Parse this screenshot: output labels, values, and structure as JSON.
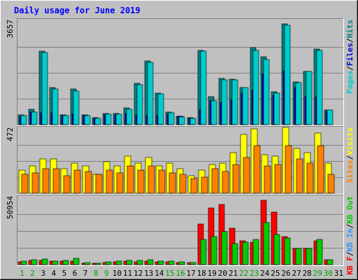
{
  "chart_data": {
    "type": "bar",
    "title": "Daily usage for June 2019",
    "categories": [
      "1",
      "2",
      "3",
      "4",
      "5",
      "6",
      "7",
      "8",
      "9",
      "10",
      "11",
      "12",
      "13",
      "14",
      "15",
      "16",
      "17",
      "18",
      "19",
      "20",
      "21",
      "22",
      "23",
      "24",
      "25",
      "26",
      "27",
      "28",
      "29",
      "30",
      "31"
    ],
    "weekend_days": [
      "1",
      "2",
      "8",
      "9",
      "15",
      "16",
      "22",
      "23",
      "29",
      "30"
    ],
    "grid": true,
    "panels": [
      {
        "name": "hits-files-pages",
        "ymax_label": "3657",
        "ylim": [
          0,
          3657
        ],
        "right_labels": [
          {
            "text": "Pages",
            "color": "#00cccc"
          },
          {
            "text": "/",
            "color": "#000000"
          },
          {
            "text": "Files",
            "color": "#0000cc"
          },
          {
            "text": "/",
            "color": "#000000"
          },
          {
            "text": "Hits",
            "color": "#008080"
          }
        ],
        "series": [
          {
            "name": "Hits",
            "color": "#008080",
            "values": [
              350,
              550,
              2600,
              1300,
              350,
              1250,
              350,
              250,
              400,
              400,
              600,
              1450,
              2250,
              1100,
              450,
              300,
              250,
              2630,
              1000,
              1620,
              1600,
              1300,
              2720,
              2400,
              1150,
              3550,
              1500,
              1890,
              2680,
              530,
              0
            ]
          },
          {
            "name": "Files",
            "color": "#0000cc",
            "values": [
              300,
              450,
              430,
              420,
              330,
              360,
              310,
              230,
              340,
              340,
              400,
              350,
              330,
              310,
              360,
              290,
              220,
              520,
              830,
              800,
              900,
              1100,
              1200,
              1800,
              1050,
              1900,
              1300,
              1000,
              1000,
              480,
              0
            ]
          },
          {
            "name": "Pages",
            "color": "#00cccc",
            "values": [
              330,
              440,
              2550,
              1260,
              330,
              1190,
              330,
              230,
              380,
              380,
              550,
              1420,
              2200,
              1080,
              420,
              280,
              230,
              2600,
              840,
              1580,
              1570,
              1300,
              2620,
              2300,
              1120,
              3500,
              1480,
              1870,
              2630,
              510,
              0
            ]
          }
        ]
      },
      {
        "name": "visits-sites",
        "ymax_label": "472",
        "ylim": [
          0,
          472
        ],
        "right_labels": [
          {
            "text": "Sites",
            "color": "#ff8000"
          },
          {
            "text": "/",
            "color": "#000000"
          },
          {
            "text": "Visits",
            "color": "#ffff00"
          }
        ],
        "series": [
          {
            "name": "Visits",
            "color": "#ffff00",
            "values": [
              170,
              200,
              250,
              250,
              180,
              220,
              200,
              140,
              230,
              200,
              270,
              220,
              260,
              200,
              220,
              180,
              130,
              170,
              210,
              220,
              300,
              430,
              470,
              280,
              270,
              480,
              330,
              300,
              440,
              220,
              0
            ]
          },
          {
            "name": "Sites",
            "color": "#ff8000",
            "values": [
              140,
              150,
              180,
              180,
              130,
              170,
              160,
              140,
              170,
              150,
              200,
              170,
              200,
              170,
              150,
              140,
              110,
              120,
              180,
              160,
              210,
              260,
              350,
              200,
              210,
              350,
              250,
              220,
              350,
              140,
              0
            ]
          }
        ]
      },
      {
        "name": "kbytes",
        "ymax_label": "50954",
        "ylim": [
          0,
          50954
        ],
        "right_labels": [
          {
            "text": "KB F",
            "color": "#ff0000"
          },
          {
            "text": "/",
            "color": "#000000"
          },
          {
            "text": "KB In",
            "color": "#3399ff"
          },
          {
            "text": "/",
            "color": "#000000"
          },
          {
            "text": "KB Out",
            "color": "#00cc00"
          }
        ],
        "series": [
          {
            "name": "KB F",
            "color": "#ff0000",
            "values": [
              2200,
              3200,
              3400,
              2500,
              2800,
              2500,
              1200,
              800,
              1700,
              2200,
              2600,
              2200,
              2700,
              2200,
              2200,
              1800,
              1500,
              31000,
              43000,
              45500,
              27500,
              18000,
              17000,
              49000,
              40000,
              21000,
              12000,
              12000,
              18000,
              3500,
              0
            ]
          },
          {
            "name": "KB In",
            "color": "#3399ff",
            "values": [
              0,
              0,
              0,
              0,
              0,
              0,
              0,
              0,
              0,
              0,
              0,
              0,
              0,
              0,
              0,
              0,
              0,
              0,
              0,
              0,
              0,
              0,
              0,
              0,
              0,
              0,
              0,
              0,
              0,
              0,
              0
            ]
          },
          {
            "name": "KB Out",
            "color": "#00cc00",
            "values": [
              2600,
              3500,
              4200,
              2700,
              3000,
              4800,
              1600,
              1200,
              2200,
              2400,
              3200,
              3000,
              3600,
              2600,
              2500,
              2200,
              1600,
              19000,
              21000,
              25000,
              16000,
              17000,
              19000,
              32000,
              23000,
              20000,
              12000,
              12000,
              19000,
              3800,
              0
            ]
          }
        ]
      }
    ]
  }
}
